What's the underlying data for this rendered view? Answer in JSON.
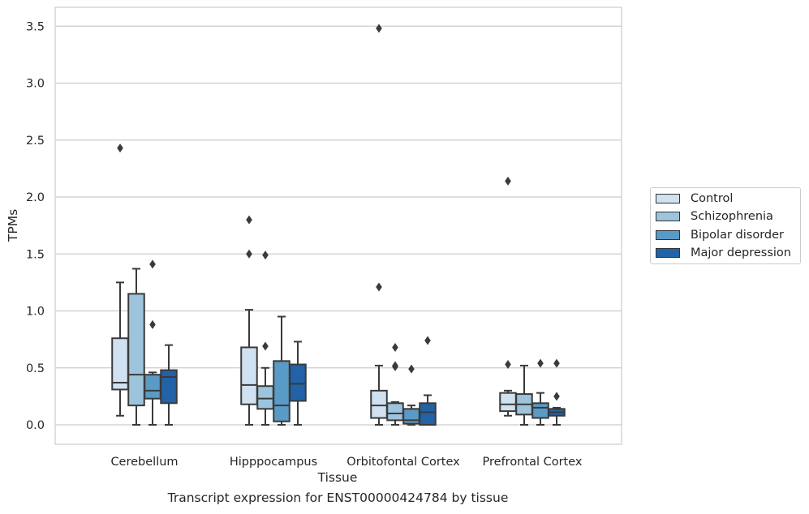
{
  "chart_data": {
    "type": "box",
    "title": "Transcript expression for ENST00000424784 by tissue",
    "xlabel": "Tissue",
    "ylabel": "TPMs",
    "ylim": [
      -0.17,
      3.65
    ],
    "yticks": [
      0.0,
      0.5,
      1.0,
      1.5,
      2.0,
      2.5,
      3.0,
      3.5
    ],
    "ytick_labels": [
      "0.0",
      "0.5",
      "1.0",
      "1.5",
      "2.0",
      "2.5",
      "3.0",
      "3.5"
    ],
    "grid": "horizontal",
    "legend_position": "right",
    "categories": [
      "Cerebellum",
      "Hipppocampus",
      "Orbitofontal Cortex",
      "Prefrontal Cortex"
    ],
    "series": [
      {
        "name": "Control",
        "color": "#d0e1f1",
        "boxes": [
          {
            "whislo": 0.08,
            "q1": 0.31,
            "med": 0.37,
            "q3": 0.76,
            "whishi": 1.25,
            "fliers": [
              2.43
            ]
          },
          {
            "whislo": 0.0,
            "q1": 0.18,
            "med": 0.35,
            "q3": 0.68,
            "whishi": 1.01,
            "fliers": [
              1.5,
              1.8
            ]
          },
          {
            "whislo": 0.0,
            "q1": 0.06,
            "med": 0.17,
            "q3": 0.3,
            "whishi": 0.52,
            "fliers": [
              1.21,
              3.48
            ]
          },
          {
            "whislo": 0.08,
            "q1": 0.12,
            "med": 0.18,
            "q3": 0.28,
            "whishi": 0.3,
            "fliers": [
              0.53,
              2.14
            ]
          }
        ]
      },
      {
        "name": "Schizophrenia",
        "color": "#9dc4dc",
        "boxes": [
          {
            "whislo": 0.0,
            "q1": 0.17,
            "med": 0.44,
            "q3": 1.15,
            "whishi": 1.37,
            "fliers": []
          },
          {
            "whislo": 0.0,
            "q1": 0.14,
            "med": 0.23,
            "q3": 0.34,
            "whishi": 0.5,
            "fliers": [
              0.69,
              1.49
            ]
          },
          {
            "whislo": 0.0,
            "q1": 0.04,
            "med": 0.1,
            "q3": 0.19,
            "whishi": 0.2,
            "fliers": [
              0.51,
              0.52,
              0.68
            ]
          },
          {
            "whislo": 0.0,
            "q1": 0.09,
            "med": 0.18,
            "q3": 0.27,
            "whishi": 0.52,
            "fliers": []
          }
        ]
      },
      {
        "name": "Bipolar disorder",
        "color": "#5a9ac6",
        "boxes": [
          {
            "whislo": 0.0,
            "q1": 0.23,
            "med": 0.3,
            "q3": 0.44,
            "whishi": 0.46,
            "fliers": [
              0.88,
              1.41
            ]
          },
          {
            "whislo": 0.0,
            "q1": 0.03,
            "med": 0.17,
            "q3": 0.56,
            "whishi": 0.95,
            "fliers": []
          },
          {
            "whislo": 0.0,
            "q1": 0.01,
            "med": 0.04,
            "q3": 0.14,
            "whishi": 0.17,
            "fliers": [
              0.49
            ]
          },
          {
            "whislo": 0.0,
            "q1": 0.06,
            "med": 0.15,
            "q3": 0.19,
            "whishi": 0.28,
            "fliers": [
              0.54
            ]
          }
        ]
      },
      {
        "name": "Major depression",
        "color": "#2262a6",
        "boxes": [
          {
            "whislo": 0.0,
            "q1": 0.19,
            "med": 0.42,
            "q3": 0.48,
            "whishi": 0.7,
            "fliers": []
          },
          {
            "whislo": 0.0,
            "q1": 0.21,
            "med": 0.36,
            "q3": 0.53,
            "whishi": 0.73,
            "fliers": []
          },
          {
            "whislo": 0.0,
            "q1": 0.0,
            "med": 0.11,
            "q3": 0.19,
            "whishi": 0.26,
            "fliers": [
              0.74
            ]
          },
          {
            "whislo": 0.0,
            "q1": 0.08,
            "med": 0.11,
            "q3": 0.14,
            "whishi": 0.15,
            "fliers": [
              0.25,
              0.54
            ]
          }
        ]
      }
    ]
  }
}
